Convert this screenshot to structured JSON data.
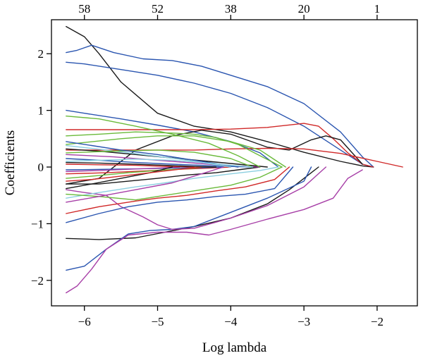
{
  "chart_data": {
    "type": "line",
    "title": "",
    "xlabel": "Log lambda",
    "ylabel": "Coefficients",
    "xlim": [
      -6.45,
      -1.45
    ],
    "ylim": [
      -2.45,
      2.6
    ],
    "x_ticks": [
      -6,
      -5,
      -4,
      -3,
      -2
    ],
    "x_tick_labels": [
      "−6",
      "−5",
      "−4",
      "−3",
      "−2"
    ],
    "y_ticks": [
      -2,
      -1,
      0,
      1,
      2
    ],
    "y_tick_labels": [
      "−2",
      "−1",
      "0",
      "1",
      "2"
    ],
    "top_axis": {
      "ticks": [
        -6,
        -5,
        -4,
        -3,
        -2
      ],
      "labels": [
        "58",
        "52",
        "38",
        "20",
        "1"
      ]
    },
    "grid": false,
    "legend": "none",
    "series": [
      {
        "color": "#1a1a1a",
        "x": [
          -6.25,
          -6.0,
          -5.8,
          -5.5,
          -5.0,
          -4.5,
          -4.0,
          -3.5,
          -3.0,
          -2.5,
          -2.2,
          -2.05
        ],
        "y": [
          2.48,
          2.3,
          2.0,
          1.5,
          0.95,
          0.72,
          0.62,
          0.45,
          0.26,
          0.1,
          0.02,
          0.0
        ]
      },
      {
        "color": "#2a55b0",
        "x": [
          -6.25,
          -6.1,
          -5.9,
          -5.6,
          -5.2,
          -4.8,
          -4.4,
          -4.0,
          -3.5,
          -3.0,
          -2.5,
          -2.2,
          -2.05
        ],
        "y": [
          2.02,
          2.06,
          2.15,
          2.02,
          1.91,
          1.88,
          1.78,
          1.62,
          1.42,
          1.12,
          0.62,
          0.18,
          0.0
        ]
      },
      {
        "color": "#2a55b0",
        "x": [
          -6.25,
          -6.0,
          -5.5,
          -5.0,
          -4.5,
          -4.0,
          -3.5,
          -3.0,
          -2.5,
          -2.2,
          -2.05
        ],
        "y": [
          1.85,
          1.82,
          1.72,
          1.62,
          1.48,
          1.3,
          1.05,
          0.72,
          0.3,
          0.05,
          0.0
        ]
      },
      {
        "color": "#2a55b0",
        "x": [
          -6.25,
          -6.0,
          -5.5,
          -5.0,
          -4.5,
          -4.0,
          -3.6,
          -3.35
        ],
        "y": [
          1.0,
          0.95,
          0.85,
          0.74,
          0.62,
          0.45,
          0.25,
          0.0
        ]
      },
      {
        "color": "#d02828",
        "x": [
          -6.25,
          -5.5,
          -5.0,
          -4.5,
          -4.0,
          -3.5,
          -3.0,
          -2.8,
          -2.6,
          -2.4,
          -2.2,
          -2.05
        ],
        "y": [
          0.66,
          0.66,
          0.66,
          0.66,
          0.67,
          0.7,
          0.77,
          0.72,
          0.5,
          0.25,
          0.05,
          0.0
        ]
      },
      {
        "color": "#1a1a1a",
        "x": [
          -6.25,
          -5.8,
          -5.3,
          -4.8,
          -4.4,
          -4.0,
          -3.5,
          -3.2,
          -2.9,
          -2.7,
          -2.5,
          -2.2
        ],
        "y": [
          -0.3,
          -0.2,
          0.3,
          0.55,
          0.65,
          0.58,
          0.35,
          0.3,
          0.48,
          0.55,
          0.48,
          0.05
        ]
      },
      {
        "color": "#d02828",
        "x": [
          -6.25,
          -5.5,
          -4.5,
          -4.0,
          -3.5,
          -3.0,
          -2.5,
          -2.0,
          -1.65
        ],
        "y": [
          0.3,
          0.3,
          0.3,
          0.32,
          0.33,
          0.32,
          0.24,
          0.1,
          0.0
        ]
      },
      {
        "color": "#6aba3a",
        "x": [
          -6.25,
          -5.8,
          -5.3,
          -4.8,
          -4.5,
          -4.2,
          -3.9,
          -3.6,
          -3.3
        ],
        "y": [
          0.55,
          0.58,
          0.62,
          0.6,
          0.58,
          0.52,
          0.4,
          0.2,
          0.0
        ]
      },
      {
        "color": "#6aba3a",
        "x": [
          -6.25,
          -5.5,
          -5.0,
          -4.5,
          -4.0,
          -3.6,
          -3.25
        ],
        "y": [
          0.4,
          0.5,
          0.55,
          0.55,
          0.45,
          0.3,
          0.0
        ]
      },
      {
        "color": "#1a1a1a",
        "x": [
          -6.25,
          -5.8,
          -5.3,
          -4.9,
          -4.5,
          -4.0,
          -3.5,
          -3.2,
          -2.9,
          -2.8
        ],
        "y": [
          -1.26,
          -1.28,
          -1.25,
          -1.15,
          -1.05,
          -0.9,
          -0.65,
          -0.4,
          -0.1,
          0.0
        ]
      },
      {
        "color": "#2a55b0",
        "x": [
          -6.25,
          -6.0,
          -5.7,
          -5.4,
          -5.1,
          -4.8,
          -4.5,
          -4.0,
          -3.5,
          -3.0,
          -2.9
        ],
        "y": [
          -1.82,
          -1.75,
          -1.45,
          -1.18,
          -1.12,
          -1.1,
          -1.05,
          -0.8,
          -0.55,
          -0.25,
          0.0
        ]
      },
      {
        "color": "#a73fa7",
        "x": [
          -6.25,
          -6.1,
          -5.9,
          -5.7,
          -5.4,
          -5.0,
          -4.6,
          -4.3,
          -4.0,
          -3.5,
          -3.0,
          -2.6,
          -2.4,
          -2.2
        ],
        "y": [
          -2.22,
          -2.1,
          -1.8,
          -1.45,
          -1.2,
          -1.15,
          -1.15,
          -1.2,
          -1.1,
          -0.92,
          -0.75,
          -0.55,
          -0.2,
          -0.05
        ]
      },
      {
        "color": "#a73fa7",
        "x": [
          -6.25,
          -6.0,
          -5.7,
          -5.5,
          -5.2,
          -5.0,
          -4.8,
          -4.5,
          -4.0,
          -3.5,
          -3.0,
          -2.7
        ],
        "y": [
          -0.4,
          -0.45,
          -0.5,
          -0.7,
          -0.88,
          -1.02,
          -1.1,
          -1.08,
          -0.9,
          -0.68,
          -0.35,
          0.0
        ]
      },
      {
        "color": "#2a55b0",
        "x": [
          -6.25,
          -5.8,
          -5.4,
          -5.0,
          -4.6,
          -4.2,
          -3.8,
          -3.4,
          -3.15
        ],
        "y": [
          -0.98,
          -0.82,
          -0.7,
          -0.62,
          -0.58,
          -0.52,
          -0.48,
          -0.38,
          0.0
        ]
      },
      {
        "color": "#d02828",
        "x": [
          -6.25,
          -5.8,
          -5.3,
          -5.0,
          -4.6,
          -4.2,
          -3.8,
          -3.4,
          -3.2
        ],
        "y": [
          -0.82,
          -0.7,
          -0.6,
          -0.55,
          -0.5,
          -0.42,
          -0.35,
          -0.22,
          0.0
        ]
      },
      {
        "color": "#8ccfe0",
        "x": [
          -6.25,
          -5.8,
          -5.3,
          -4.9,
          -4.5,
          -4.0,
          -3.6,
          -3.35
        ],
        "y": [
          -0.55,
          -0.45,
          -0.35,
          -0.28,
          -0.2,
          -0.12,
          -0.06,
          0.0
        ]
      },
      {
        "color": "#6aba3a",
        "x": [
          -6.25,
          -5.8,
          -5.3,
          -5.0,
          -4.5,
          -4.0,
          -3.6,
          -3.3
        ],
        "y": [
          -0.48,
          -0.52,
          -0.58,
          -0.52,
          -0.42,
          -0.32,
          -0.18,
          0.0
        ]
      },
      {
        "color": "#1a1a1a",
        "x": [
          -6.25,
          -5.8,
          -5.4,
          -5.0,
          -4.6,
          -4.2,
          -3.9,
          -3.6
        ],
        "y": [
          -0.3,
          -0.3,
          -0.25,
          -0.2,
          -0.14,
          -0.1,
          -0.05,
          0.0
        ]
      },
      {
        "color": "#2a55b0",
        "x": [
          -6.25,
          -5.8,
          -5.3,
          -4.8,
          -4.4,
          -4.0,
          -3.7
        ],
        "y": [
          0.15,
          0.12,
          0.08,
          0.05,
          0.03,
          0.01,
          0.0
        ]
      },
      {
        "color": "#a73fa7",
        "x": [
          -6.25,
          -5.6,
          -5.0,
          -4.6,
          -4.2,
          -3.9,
          -3.6
        ],
        "y": [
          0.22,
          0.18,
          0.12,
          0.08,
          0.04,
          0.02,
          0.0
        ]
      },
      {
        "color": "#d02828",
        "x": [
          -6.25,
          -5.7,
          -5.2,
          -4.7,
          -4.3,
          -4.0
        ],
        "y": [
          -0.12,
          -0.1,
          -0.07,
          -0.04,
          -0.02,
          0.0
        ]
      },
      {
        "color": "#1a1a1a",
        "x": [
          -6.25,
          -5.8,
          -5.3,
          -4.8,
          -4.3,
          -3.9,
          -3.5
        ],
        "y": [
          0.32,
          0.28,
          0.22,
          0.16,
          0.1,
          0.05,
          0.0
        ]
      },
      {
        "color": "#8ccfe0",
        "x": [
          -6.25,
          -5.7,
          -5.2,
          -4.7,
          -4.3,
          -4.0
        ],
        "y": [
          0.38,
          0.3,
          0.22,
          0.14,
          0.06,
          0.0
        ]
      },
      {
        "color": "#6aba3a",
        "x": [
          -6.25,
          -5.8,
          -5.4,
          -5.0,
          -4.6,
          -4.3
        ],
        "y": [
          -0.2,
          -0.15,
          -0.1,
          -0.06,
          -0.03,
          0.0
        ]
      },
      {
        "color": "#2a55b0",
        "x": [
          -6.25,
          -5.7,
          -5.2,
          -4.8,
          -4.4,
          -4.1
        ],
        "y": [
          -0.05,
          -0.04,
          -0.03,
          -0.02,
          -0.01,
          0.0
        ]
      },
      {
        "color": "#a73fa7",
        "x": [
          -6.25,
          -5.8,
          -5.4,
          -5.0,
          -4.7
        ],
        "y": [
          -0.08,
          -0.06,
          -0.04,
          -0.02,
          0.0
        ]
      },
      {
        "color": "#d02828",
        "x": [
          -6.25,
          -5.8,
          -5.3,
          -4.9,
          -4.5
        ],
        "y": [
          0.05,
          0.04,
          0.03,
          0.01,
          0.0
        ]
      },
      {
        "color": "#1a1a1a",
        "x": [
          -6.25,
          -5.9,
          -5.5,
          -5.1,
          -4.8
        ],
        "y": [
          -0.38,
          -0.3,
          -0.2,
          -0.1,
          0.0
        ]
      },
      {
        "color": "#6aba3a",
        "x": [
          -6.25,
          -5.6,
          -5.0,
          -4.5,
          -4.0,
          -3.7
        ],
        "y": [
          0.25,
          0.28,
          0.3,
          0.26,
          0.15,
          0.0
        ]
      },
      {
        "color": "#2a55b0",
        "x": [
          -6.25,
          -5.9,
          -5.5,
          -5.0,
          -4.6,
          -4.2,
          -3.9
        ],
        "y": [
          0.45,
          0.38,
          0.3,
          0.22,
          0.14,
          0.06,
          0.0
        ]
      },
      {
        "color": "#d02828",
        "x": [
          -6.25,
          -5.9,
          -5.5,
          -5.1,
          -4.7,
          -4.4
        ],
        "y": [
          -0.25,
          -0.22,
          -0.16,
          -0.1,
          -0.04,
          0.0
        ]
      },
      {
        "color": "#a73fa7",
        "x": [
          -6.25,
          -5.8,
          -5.3,
          -4.8,
          -4.4,
          -4.1
        ],
        "y": [
          -0.62,
          -0.52,
          -0.4,
          -0.28,
          -0.12,
          0.0
        ]
      },
      {
        "color": "#8ccfe0",
        "x": [
          -6.25,
          -5.8,
          -5.3,
          -4.8,
          -4.4,
          -4.0,
          -3.7
        ],
        "y": [
          0.1,
          0.12,
          0.14,
          0.12,
          0.08,
          0.03,
          0.0
        ]
      },
      {
        "color": "#6aba3a",
        "x": [
          -6.25,
          -5.8,
          -5.3,
          -4.8,
          -4.3,
          -3.9,
          -3.6
        ],
        "y": [
          0.9,
          0.85,
          0.72,
          0.58,
          0.42,
          0.2,
          0.0
        ]
      },
      {
        "color": "#1a1a1a",
        "x": [
          -6.25,
          -5.8,
          -5.3,
          -4.9,
          -4.5,
          -4.2
        ],
        "y": [
          0.08,
          0.07,
          0.05,
          0.03,
          0.01,
          0.0
        ]
      }
    ]
  }
}
